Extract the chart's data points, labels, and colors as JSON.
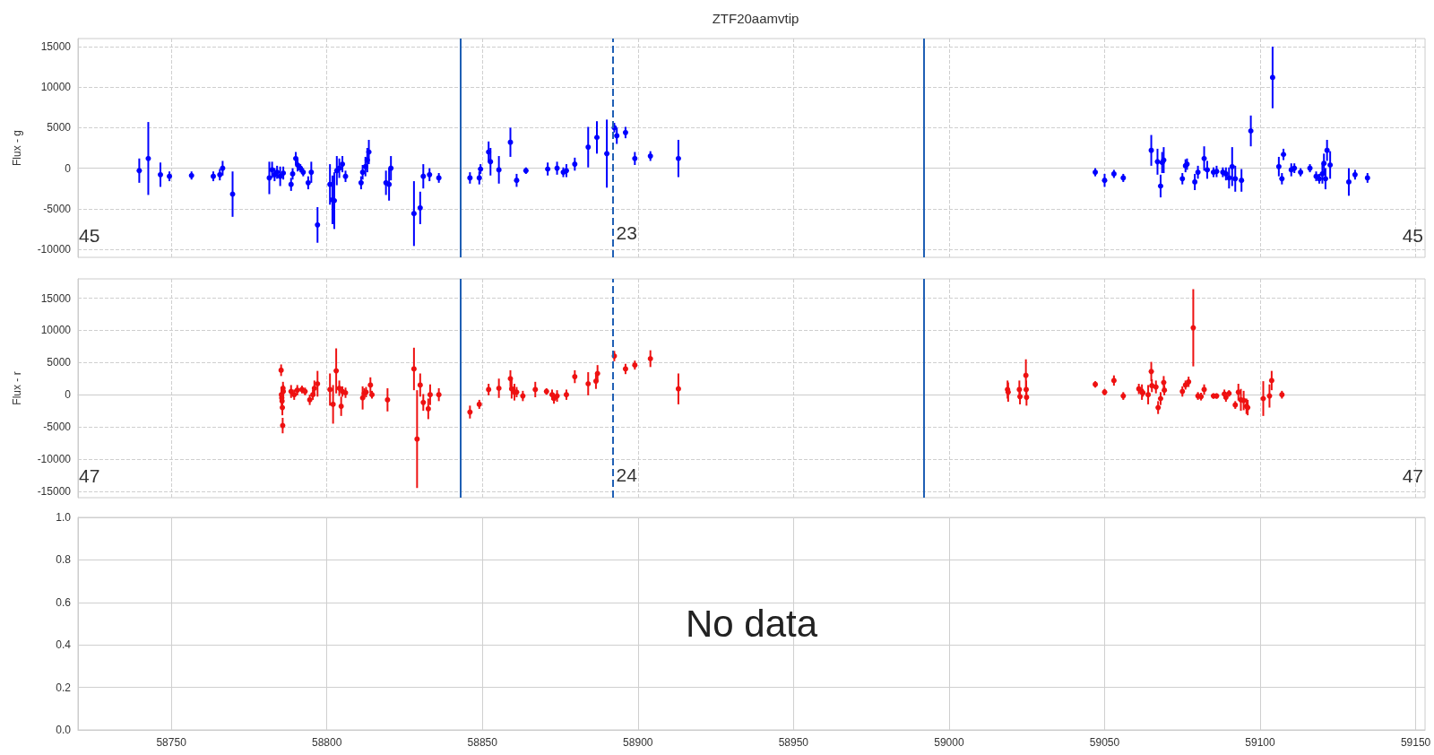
{
  "chart_data": [
    {
      "type": "scatter",
      "title": "ZTF20aamvtip",
      "ylabel": "Flux - g",
      "marker": "circle",
      "grid": true,
      "tick_labels": "y",
      "xlim": [
        58720,
        59153
      ],
      "xticks": [
        58750,
        58800,
        58850,
        58900,
        58950,
        59000,
        59050,
        59100,
        59150
      ],
      "ylim": [
        -11000,
        16000
      ],
      "yticks": [
        -10000,
        -5000,
        0,
        5000,
        10000,
        15000
      ],
      "series": [
        {
          "color": "#0000ff",
          "x": [
            58739.7,
            58742.6,
            58746.5,
            58749.4,
            58756.5,
            58763.5,
            58765.6,
            58766.5,
            58769.7,
            58781.5,
            58782.4,
            58783.2,
            58784,
            58785,
            58786,
            58788.5,
            58789,
            58790,
            58790.6,
            58791.5,
            58792.4,
            58794,
            58795,
            58797,
            58801,
            58801.8,
            58802.4,
            58803.2,
            58804,
            58805,
            58806,
            58811,
            58811.5,
            58812.4,
            58813,
            58813.5,
            58819,
            58820,
            58820.6,
            58828,
            58830,
            58831,
            58833,
            58836,
            58846,
            58849,
            58849.4,
            58852,
            58852.6,
            58855.3,
            58859,
            58861,
            58864,
            58871,
            58874,
            58876,
            58877,
            58879.7,
            58884,
            58886.8,
            58890,
            58892.4,
            58893.2,
            58896,
            58899,
            58904,
            58913,
            59047,
            59050,
            59053,
            59056,
            59065,
            59067,
            59068,
            59068.5,
            59069,
            59075,
            59076,
            59076.5,
            59079,
            59080,
            59082,
            59083,
            59085,
            59086,
            59088,
            59089,
            59090,
            59091,
            59092,
            59094,
            59097,
            59104,
            59106,
            59107,
            59107.5,
            59110,
            59111,
            59113,
            59116,
            59118,
            59119,
            59120,
            59120.5,
            59121,
            59121.5,
            59122.5,
            59128.5,
            59130.5,
            59134.5
          ],
          "values": [
            -300,
            1200,
            -800,
            -1000,
            -900,
            -1000,
            -800,
            0,
            -3200,
            -1200,
            -200,
            -800,
            -500,
            -1000,
            -600,
            -2000,
            -700,
            1200,
            400,
            0,
            -500,
            -1800,
            -500,
            -7000,
            -2000,
            -3900,
            -4000,
            -300,
            0,
            500,
            -1000,
            -1800,
            -500,
            200,
            1000,
            2000,
            -1800,
            -2000,
            0,
            -5600,
            -4900,
            -1000,
            -800,
            -1200,
            -1200,
            -1200,
            -100,
            2000,
            800,
            -200,
            3200,
            -1500,
            -300,
            -100,
            0,
            -500,
            -300,
            500,
            2600,
            3800,
            1800,
            5000,
            4000,
            4400,
            1200,
            1500,
            1200,
            -500,
            -1500,
            -700,
            -1200,
            2200,
            800,
            -2200,
            700,
            1000,
            -1300,
            300,
            500,
            -1700,
            -500,
            1200,
            -200,
            -500,
            -400,
            -500,
            -700,
            -1200,
            200,
            -1300,
            -1500,
            4600,
            11200,
            200,
            -1300,
            1700,
            -200,
            0,
            -500,
            0,
            -1000,
            -1300,
            -700,
            600,
            -1300,
            2200,
            400,
            -1700,
            -800,
            -1200
          ],
          "errors": [
            1500,
            4500,
            1500,
            600,
            500,
            600,
            700,
            900,
            2800,
            2000,
            1000,
            800,
            800,
            1200,
            800,
            800,
            700,
            800,
            800,
            500,
            500,
            800,
            1300,
            2200,
            2500,
            3000,
            3500,
            1800,
            1200,
            1000,
            700,
            800,
            900,
            1200,
            1500,
            1500,
            1500,
            2000,
            1500,
            4000,
            2000,
            1500,
            800,
            600,
            700,
            800,
            600,
            1300,
            1700,
            1700,
            1800,
            800,
            400,
            800,
            800,
            600,
            800,
            800,
            2500,
            2000,
            4200,
            600,
            1000,
            700,
            800,
            600,
            2300,
            500,
            800,
            500,
            500,
            1900,
            1600,
            1400,
            1300,
            1600,
            700,
            800,
            700,
            1000,
            800,
            1500,
            1100,
            600,
            700,
            600,
            800,
            1300,
            2400,
            1600,
            1400,
            1900,
            3800,
            1200,
            700,
            700,
            800,
            600,
            500,
            500,
            600,
            600,
            1200,
            1200,
            1300,
            1300,
            1700,
            1700,
            600,
            600
          ]
        }
      ],
      "ref_lines": [
        {
          "axis": "x",
          "value": 58843,
          "color": "#1f5fb4",
          "line_style": "solid"
        },
        {
          "axis": "x",
          "value": 58892,
          "color": "#1f5fb4",
          "line_style": "dashed"
        },
        {
          "axis": "x",
          "value": 58992,
          "color": "#1f5fb4",
          "line_style": "solid"
        }
      ],
      "annotations": [
        "45",
        {
          "text": "23",
          "x": 58893,
          "y": -8000
        },
        "45"
      ]
    },
    {
      "type": "scatter",
      "ylabel": "Flux - r",
      "marker": "circle",
      "grid": true,
      "tick_labels": "y",
      "xlim": [
        58720,
        59153
      ],
      "xticks": [
        58750,
        58800,
        58850,
        58900,
        58950,
        59000,
        59050,
        59100,
        59150
      ],
      "ylim": [
        -16000,
        18000
      ],
      "yticks": [
        -15000,
        -10000,
        -5000,
        0,
        5000,
        10000,
        15000
      ],
      "series": [
        {
          "color": "#ee1111",
          "x": [
            58785.3,
            58785.4,
            58785.5,
            58785.6,
            58785.7,
            58785.8,
            58785.9,
            58786,
            58788.5,
            58789.5,
            58790.5,
            58792,
            58793,
            58794.5,
            58795.5,
            58796,
            58797,
            58801,
            58802,
            58803,
            58804,
            58804.6,
            58805,
            58806,
            58811.5,
            58812,
            58812.6,
            58814,
            58814.5,
            58819.5,
            58828,
            58829,
            58830,
            58831,
            58832.6,
            58833.2,
            58836,
            58846,
            58849,
            58852,
            58855.3,
            58859,
            58859.4,
            58860.3,
            58861,
            58863,
            58867,
            58870.6,
            58872.4,
            58873,
            58874,
            58877,
            58879.7,
            58884,
            58886.5,
            58887,
            58892.4,
            58896,
            58899,
            58904,
            58913,
            59018.8,
            59019,
            59022.6,
            59022.8,
            59024.7,
            59024.8,
            59024.9,
            59047,
            59050,
            59053,
            59056,
            59061,
            59062,
            59062.3,
            59064,
            59065,
            59065.2,
            59066.5,
            59067.2,
            59068,
            59069,
            59069.2,
            59075,
            59076,
            59077,
            59078.5,
            59080,
            59081,
            59082,
            59085,
            59086,
            59088.5,
            59089,
            59090,
            59092,
            59093,
            59093.8,
            59094.7,
            59095.6,
            59096,
            59101,
            59103,
            59103.7,
            59107
          ],
          "values": [
            3800,
            0,
            -500,
            -1000,
            -2000,
            -4800,
            1000,
            500,
            500,
            0,
            700,
            800,
            500,
            -800,
            0,
            1000,
            1700,
            800,
            -1500,
            3700,
            1000,
            -1800,
            500,
            300,
            -500,
            200,
            400,
            1500,
            0,
            -800,
            4000,
            -6900,
            1500,
            -1200,
            -2200,
            0,
            0,
            -2700,
            -1500,
            800,
            1000,
            2500,
            900,
            400,
            400,
            -200,
            800,
            500,
            0,
            -600,
            -200,
            0,
            2800,
            1700,
            2100,
            3300,
            6000,
            4000,
            4600,
            5600,
            900,
            800,
            400,
            800,
            -300,
            3000,
            800,
            -400,
            1600,
            400,
            2200,
            -200,
            900,
            400,
            300,
            0,
            3600,
            1400,
            1200,
            -2000,
            -600,
            1900,
            700,
            500,
            1500,
            2000,
            10400,
            -200,
            -300,
            800,
            -200,
            -200,
            100,
            -400,
            200,
            -1600,
            400,
            -800,
            -900,
            -1800,
            -2000,
            -600,
            -200,
            2200,
            0
          ],
          "errors": [
            900,
            1200,
            1200,
            1200,
            1200,
            1200,
            1000,
            1000,
            1000,
            800,
            800,
            600,
            600,
            800,
            800,
            1200,
            2000,
            2500,
            3000,
            3500,
            1200,
            1500,
            800,
            800,
            1800,
            800,
            800,
            1200,
            600,
            1800,
            3300,
            7600,
            1800,
            1300,
            1600,
            1600,
            1000,
            1000,
            700,
            900,
            1500,
            1300,
            1500,
            1300,
            800,
            800,
            1200,
            500,
            800,
            800,
            900,
            800,
            1000,
            1800,
            1200,
            1300,
            800,
            800,
            700,
            1300,
            2400,
            1400,
            1500,
            1400,
            1200,
            2500,
            1400,
            1300,
            500,
            500,
            800,
            600,
            800,
            1200,
            600,
            1500,
            1500,
            1000,
            1000,
            1000,
            1000,
            1000,
            800,
            800,
            700,
            800,
            6000,
            600,
            600,
            800,
            400,
            400,
            700,
            700,
            500,
            600,
            1300,
            1700,
            1500,
            1200,
            1200,
            2700,
            1800,
            1500,
            600
          ]
        }
      ],
      "ref_lines": [
        {
          "axis": "x",
          "value": 58843,
          "color": "#1f5fb4",
          "line_style": "solid"
        },
        {
          "axis": "x",
          "value": 58892,
          "color": "#1f5fb4",
          "line_style": "dashed"
        },
        {
          "axis": "x",
          "value": 58992,
          "color": "#1f5fb4",
          "line_style": "solid"
        }
      ],
      "annotations": [
        "47",
        {
          "text": "24",
          "x": 58893,
          "y": -12500
        },
        "47"
      ]
    },
    {
      "type": "scatter",
      "grid": true,
      "xlim": [
        58720,
        59153
      ],
      "xticks": [
        58750,
        58800,
        58850,
        58900,
        58950,
        59000,
        59050,
        59100,
        59150
      ],
      "ylim": [
        0,
        1
      ],
      "yticks": [
        {
          "value": 0,
          "label": "0.0"
        },
        0.2,
        0.4,
        0.6,
        0.8,
        {
          "value": 1,
          "label": "1.0"
        }
      ],
      "annotations": [
        "No data"
      ]
    }
  ]
}
